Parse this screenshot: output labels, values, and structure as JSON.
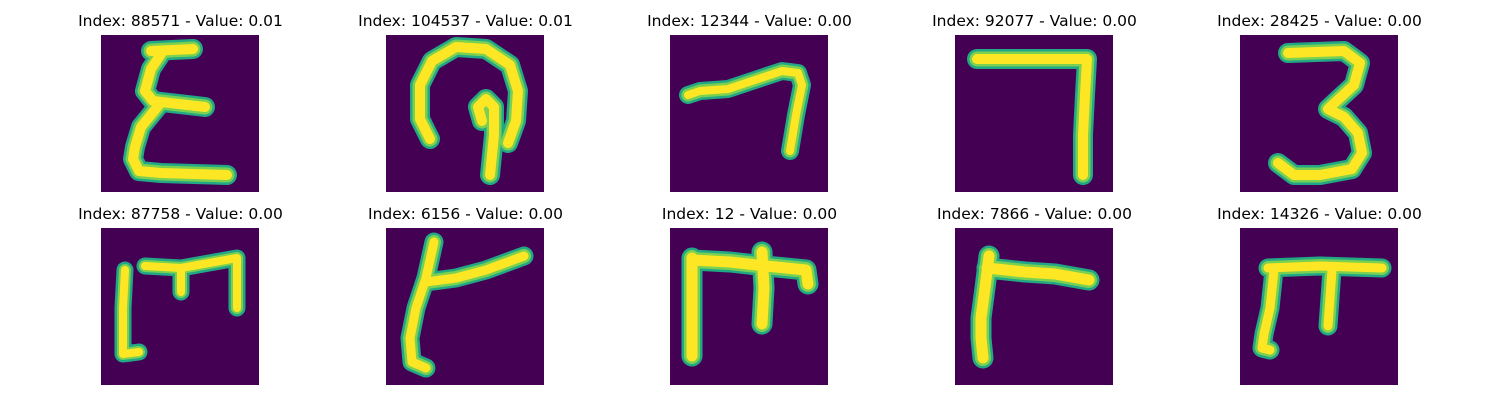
{
  "figure": {
    "panels": [
      {
        "title": "Index: 88571 - Value: 0.01",
        "glyph": "glyph-sigma"
      },
      {
        "title": "Index: 104537 - Value: 0.01",
        "glyph": "glyph-loop"
      },
      {
        "title": "Index: 12344 - Value: 0.00",
        "glyph": "glyph-hook"
      },
      {
        "title": "Index: 92077 - Value: 0.00",
        "glyph": "glyph-seven"
      },
      {
        "title": "Index: 28425 - Value: 0.00",
        "glyph": "glyph-three"
      },
      {
        "title": "Index: 87758 - Value: 0.00",
        "glyph": "glyph-m-bracket"
      },
      {
        "title": "Index: 6156 - Value: 0.00",
        "glyph": "glyph-y-branch"
      },
      {
        "title": "Index: 12 - Value: 0.00",
        "glyph": "glyph-pi-flag"
      },
      {
        "title": "Index: 7866 - Value: 0.00",
        "glyph": "glyph-gamma"
      },
      {
        "title": "Index: 14326 - Value: 0.00",
        "glyph": "glyph-pi"
      }
    ],
    "colors": {
      "background": "#440154",
      "stroke_core": "#fde725",
      "stroke_mid": "#7ad151",
      "stroke_edge": "#22a884"
    }
  }
}
